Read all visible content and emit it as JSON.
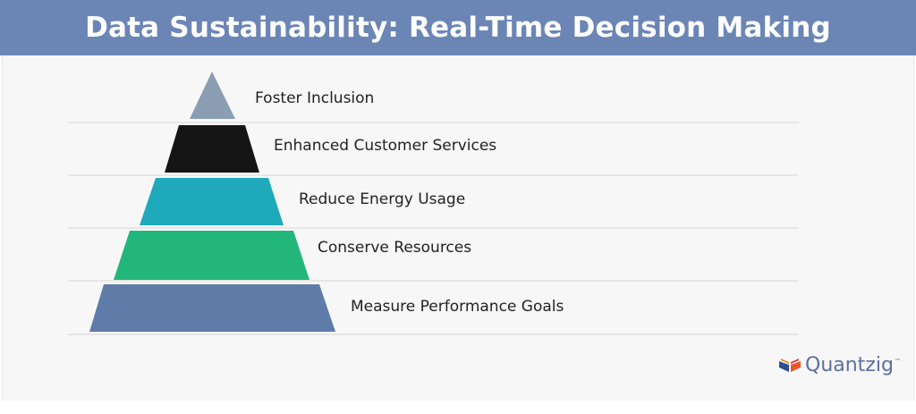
{
  "banner": {
    "title": "Data Sustainability: Real-Time Decision Making",
    "color": "#6b86b5"
  },
  "pyramid": {
    "tiers": [
      {
        "label": "Foster Inclusion",
        "color": "#8a9db3"
      },
      {
        "label": "Enhanced Customer Services",
        "color": "#151515"
      },
      {
        "label": "Reduce Energy Usage",
        "color": "#1eaabb"
      },
      {
        "label": "Conserve Resources",
        "color": "#23b67b"
      },
      {
        "label": "Measure Performance Goals",
        "color": "#5f7ca9"
      }
    ],
    "divider_color": "#d4d4d4"
  },
  "logo": {
    "name": "Quantzig",
    "tm": "™",
    "text_color": "#5b6fa0",
    "icon": "open-book-logo-icon"
  }
}
